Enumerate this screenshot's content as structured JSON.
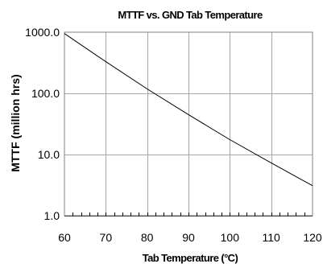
{
  "chart_data": {
    "type": "line",
    "title": "MTTF vs. GND Tab Temperature",
    "xlabel": "Tab Temperature (°C)",
    "ylabel": "MTTF (million hrs)",
    "xlim": [
      60,
      120
    ],
    "ylim": [
      1,
      1000
    ],
    "yscale": "log",
    "grid": true,
    "x_ticks": [
      60,
      70,
      80,
      90,
      100,
      110,
      120
    ],
    "x_tick_labels": [
      "60",
      "70",
      "80",
      "90",
      "100",
      "110",
      "120"
    ],
    "y_ticks": [
      1,
      10,
      100,
      1000
    ],
    "y_tick_labels": [
      "1.0",
      "10.0",
      "100.0",
      "1000.0"
    ],
    "x_minor_step": 2,
    "series": [
      {
        "x": [
          60,
          70,
          80,
          90,
          100,
          110,
          120
        ],
        "values": [
          950,
          330,
          118,
          45,
          17.5,
          7.3,
          3.1
        ]
      }
    ]
  }
}
